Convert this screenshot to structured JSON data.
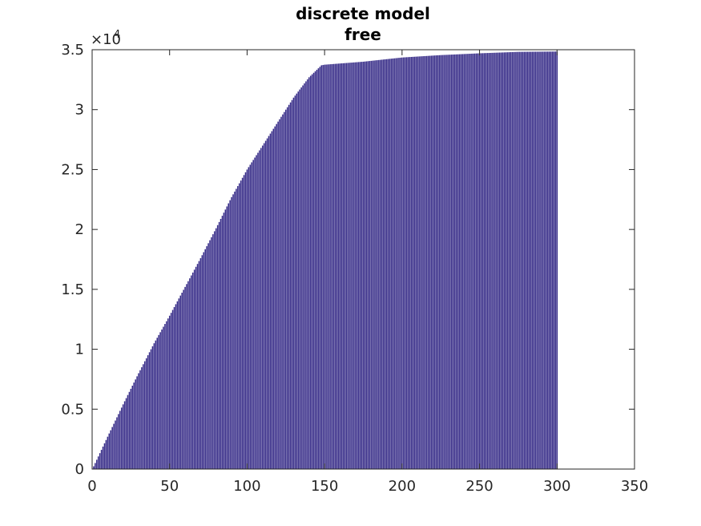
{
  "chart_data": {
    "type": "bar",
    "title": "discrete model",
    "subtitle": "free",
    "xlabel": "",
    "ylabel": "",
    "xlim": [
      0,
      350
    ],
    "ylim": [
      0,
      35000
    ],
    "x_ticks": [
      "0",
      "50",
      "100",
      "150",
      "200",
      "250",
      "300",
      "350"
    ],
    "y_ticks": [
      "0",
      "0.5",
      "1",
      "1.5",
      "2",
      "2.5",
      "3",
      "3.5"
    ],
    "y_exponent_base": "×10",
    "y_exponent_power": "4",
    "grid": false,
    "bar_color": "#352a87",
    "x_start": 1,
    "x_end": 300,
    "series": [
      {
        "values_description_points": [
          [
            1,
            230
          ],
          [
            10,
            2700
          ],
          [
            20,
            5400
          ],
          [
            30,
            8000
          ],
          [
            40,
            10500
          ],
          [
            50,
            12800
          ],
          [
            60,
            15200
          ],
          [
            70,
            17600
          ],
          [
            80,
            20100
          ],
          [
            90,
            22700
          ],
          [
            100,
            25000
          ],
          [
            110,
            27000
          ],
          [
            120,
            29000
          ],
          [
            130,
            31000
          ],
          [
            140,
            32700
          ],
          [
            148,
            33700
          ],
          [
            150,
            33750
          ],
          [
            175,
            34000
          ],
          [
            200,
            34350
          ],
          [
            225,
            34550
          ],
          [
            250,
            34700
          ],
          [
            275,
            34820
          ],
          [
            300,
            34850
          ]
        ]
      }
    ]
  }
}
